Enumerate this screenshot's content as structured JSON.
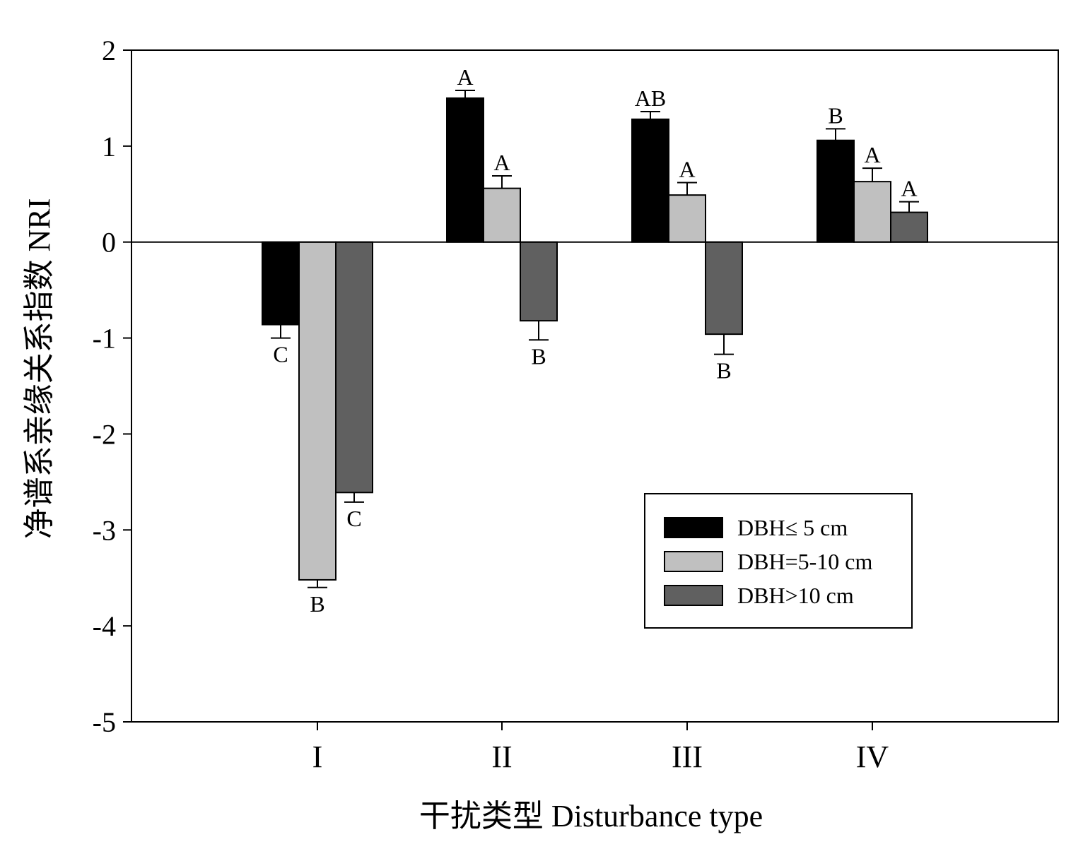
{
  "chart_data": {
    "type": "bar",
    "title": "",
    "xlabel": "干扰类型 Disturbance type",
    "ylabel": "净谱系亲缘关系指数 NRI",
    "ylim": [
      -5,
      2
    ],
    "yticks": [
      "2",
      "1",
      "0",
      "-1",
      "-2",
      "-3",
      "-4",
      "-5"
    ],
    "categories": [
      "I",
      "II",
      "III",
      "IV"
    ],
    "grid": false,
    "legend_position": "lower-right",
    "series": [
      {
        "name": "DBH≤  5 cm",
        "color": "#000000",
        "values": [
          -0.86,
          1.5,
          1.28,
          1.06
        ],
        "errors": [
          0.14,
          0.08,
          0.08,
          0.12
        ],
        "letters": [
          "C",
          "A",
          "AB",
          "B"
        ]
      },
      {
        "name": "DBH=5-10 cm",
        "color": "#c0c0c0",
        "values": [
          -3.52,
          0.56,
          0.49,
          0.63
        ],
        "errors": [
          0.08,
          0.13,
          0.13,
          0.14
        ],
        "letters": [
          "B",
          "A",
          "A",
          "A"
        ]
      },
      {
        "name": "DBH>10 cm",
        "color": "#606060",
        "values": [
          -2.61,
          -0.82,
          -0.96,
          0.31
        ],
        "errors": [
          0.1,
          0.2,
          0.21,
          0.11
        ],
        "letters": [
          "C",
          "B",
          "B",
          "A"
        ]
      }
    ]
  }
}
